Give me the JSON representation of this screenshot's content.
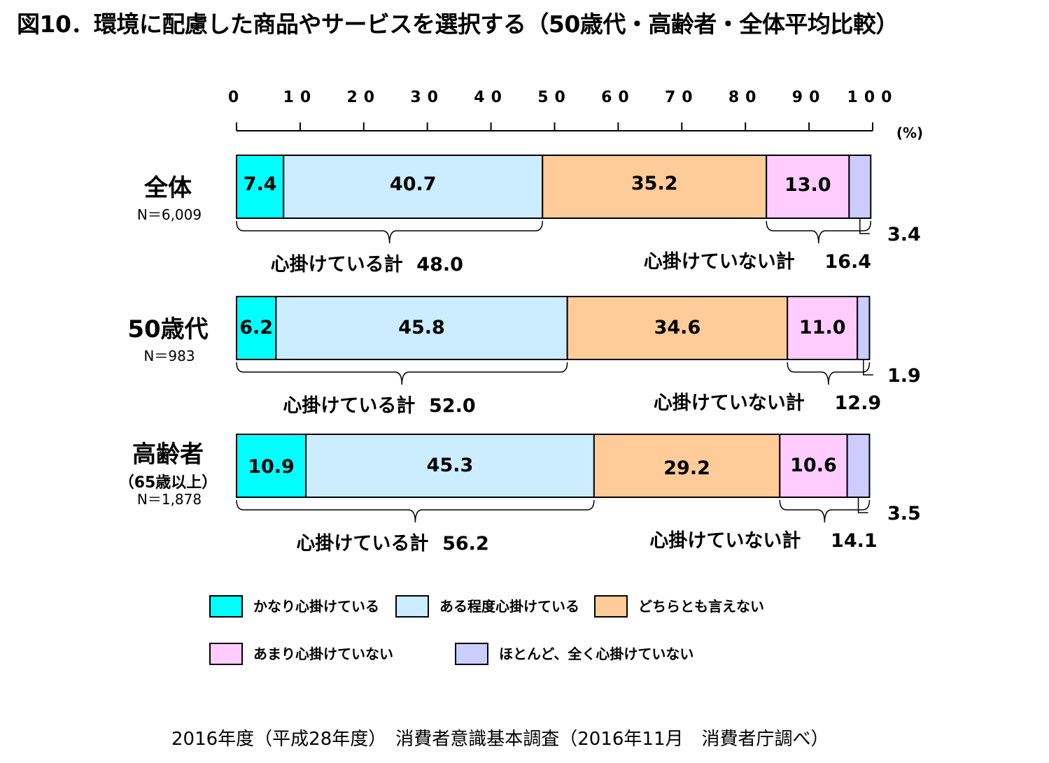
{
  "title": "図10．環境に配慮した商品やサービスを選択する（50歳代・高齢者・全体平均比較）",
  "footer": "2016年度（平成28年度）　消費者意識基本調査（2016年11月　消費者庁調べ）",
  "chart_data": {
    "type": "bar",
    "orientation": "horizontal",
    "stacked": true,
    "percent_stacked": true,
    "unit_label": "(%)",
    "xlim": [
      0,
      100
    ],
    "x_ticks": [
      "0",
      "10",
      "20",
      "30",
      "40",
      "50",
      "60",
      "70",
      "80",
      "90",
      "100"
    ],
    "grid": false,
    "legend_position": "bottom",
    "colors": [
      "#00ffff",
      "#ccecff",
      "#ffcc99",
      "#ffccff",
      "#ccccff"
    ],
    "series": [
      {
        "name": "かなり心掛けている",
        "values": [
          7.4,
          6.2,
          10.9
        ]
      },
      {
        "name": "ある程度心掛けている",
        "values": [
          40.7,
          45.8,
          45.3
        ]
      },
      {
        "name": "どちらとも言えない",
        "values": [
          35.2,
          34.6,
          29.2
        ]
      },
      {
        "name": "あまり心掛けていない",
        "values": [
          13.0,
          11.0,
          10.6
        ]
      },
      {
        "name": "ほとんど、全く心掛けていない",
        "values": [
          3.4,
          1.9,
          3.5
        ]
      }
    ],
    "categories": [
      {
        "name": "全体",
        "sub": "",
        "n": "N＝6,009"
      },
      {
        "name": "50歳代",
        "sub": "",
        "n": "N＝983"
      },
      {
        "name": "高齢者",
        "sub": "（65歳以上）",
        "n": "N＝1,878"
      }
    ],
    "label_values": [
      [
        "7.4",
        "40.7",
        "35.2",
        "13.0",
        "3.4"
      ],
      [
        "6.2",
        "45.8",
        "34.6",
        "11.0",
        "1.9"
      ],
      [
        "10.9",
        "45.3",
        "29.2",
        "10.6",
        "3.5"
      ]
    ],
    "totals": [
      {
        "positive_label": "心掛けている計",
        "positive_value": "48.0",
        "negative_label": "心掛けていない計",
        "negative_value": "16.4"
      },
      {
        "positive_label": "心掛けている計",
        "positive_value": "52.0",
        "negative_label": "心掛けていない計",
        "negative_value": "12.9"
      },
      {
        "positive_label": "心掛けている計",
        "positive_value": "56.2",
        "negative_label": "心掛けていない計",
        "negative_value": "14.1"
      }
    ]
  }
}
